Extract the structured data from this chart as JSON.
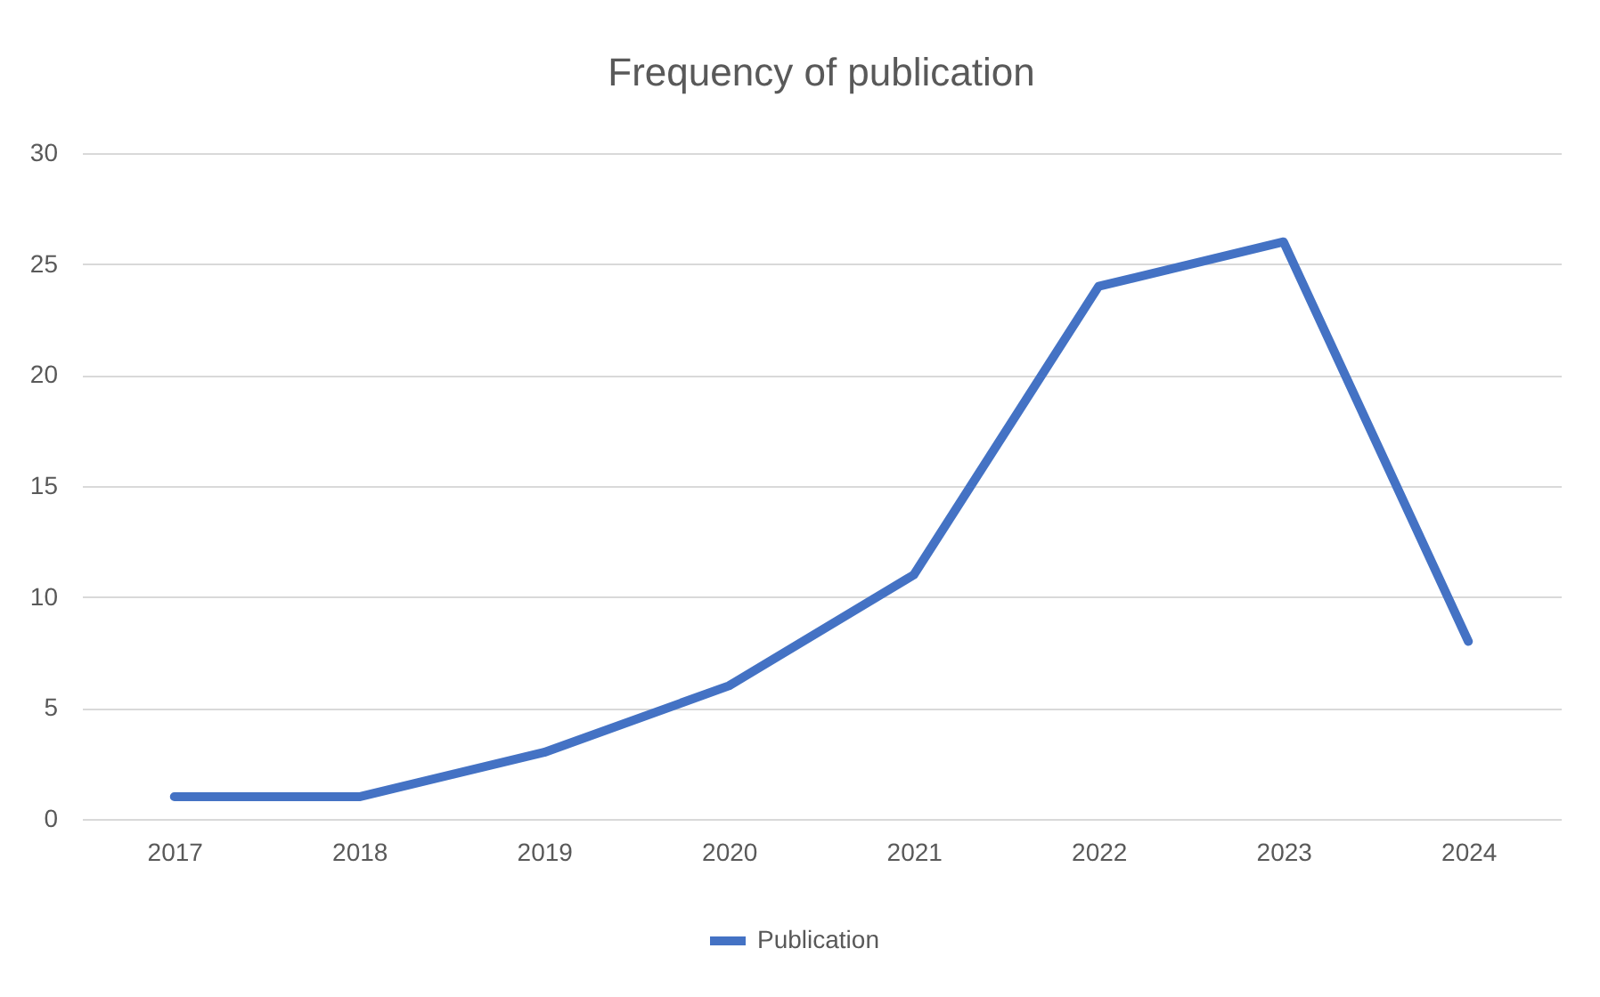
{
  "chart_data": {
    "type": "line",
    "title": "Frequency of publication",
    "categories": [
      "2017",
      "2018",
      "2019",
      "2020",
      "2021",
      "2022",
      "2023",
      "2024"
    ],
    "series": [
      {
        "name": "Publication",
        "color": "#4472c4",
        "values": [
          1,
          1,
          3,
          6,
          11,
          24,
          26,
          8
        ]
      }
    ],
    "ylim": [
      0,
      30
    ],
    "yticks": [
      0,
      5,
      10,
      15,
      20,
      25,
      30
    ],
    "grid": "y",
    "legend": "bottom",
    "line_style": "solid",
    "marker": "none"
  }
}
